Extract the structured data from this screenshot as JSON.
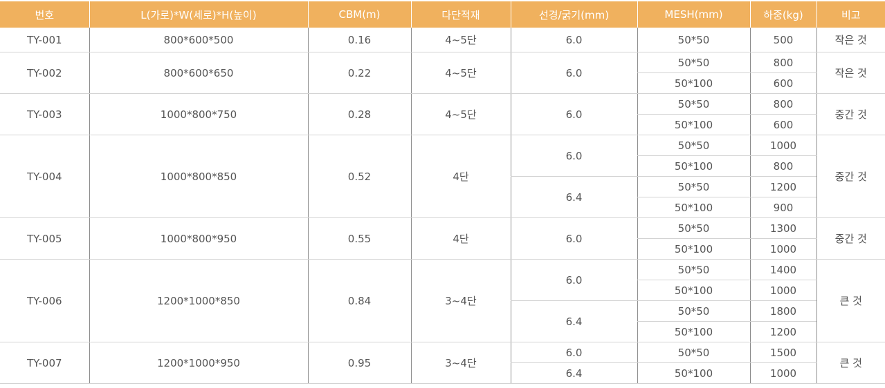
{
  "colors": {
    "header_bg": "#f0b15e",
    "header_text": "#ffffff",
    "body_text": "#555555",
    "row_line": "#d3d3d3",
    "col_line": "#8c8c8c"
  },
  "headers": [
    "번호",
    "L(가로)*W(세로)*H(높이)",
    "CBM(m)",
    "다단적재",
    "선경/굵기(mm)",
    "MESH(mm)",
    "하중(kg)",
    "비고"
  ],
  "products": [
    {
      "no": "TY-001",
      "size": "800*600*500",
      "cbm": "0.16",
      "stack": "4~5단",
      "note": "작은 것",
      "wires": [
        {
          "dia": "6.0",
          "meshes": [
            {
              "mesh": "50*50",
              "load": "500"
            }
          ]
        }
      ]
    },
    {
      "no": "TY-002",
      "size": "800*600*650",
      "cbm": "0.22",
      "stack": "4~5단",
      "note": "작은 것",
      "wires": [
        {
          "dia": "6.0",
          "meshes": [
            {
              "mesh": "50*50",
              "load": "800"
            },
            {
              "mesh": "50*100",
              "load": "600"
            }
          ]
        }
      ]
    },
    {
      "no": "TY-003",
      "size": "1000*800*750",
      "cbm": "0.28",
      "stack": "4~5단",
      "note": "중간 것",
      "wires": [
        {
          "dia": "6.0",
          "meshes": [
            {
              "mesh": "50*50",
              "load": "800"
            },
            {
              "mesh": "50*100",
              "load": "600"
            }
          ]
        }
      ]
    },
    {
      "no": "TY-004",
      "size": "1000*800*850",
      "cbm": "0.52",
      "stack": "4단",
      "note": "중간 것",
      "wires": [
        {
          "dia": "6.0",
          "meshes": [
            {
              "mesh": "50*50",
              "load": "1000"
            },
            {
              "mesh": "50*100",
              "load": "800"
            }
          ]
        },
        {
          "dia": "6.4",
          "meshes": [
            {
              "mesh": "50*50",
              "load": "1200"
            },
            {
              "mesh": "50*100",
              "load": "900"
            }
          ]
        }
      ]
    },
    {
      "no": "TY-005",
      "size": "1000*800*950",
      "cbm": "0.55",
      "stack": "4단",
      "note": "중간 것",
      "wires": [
        {
          "dia": "6.0",
          "meshes": [
            {
              "mesh": "50*50",
              "load": "1300"
            },
            {
              "mesh": "50*100",
              "load": "1000"
            }
          ]
        }
      ]
    },
    {
      "no": "TY-006",
      "size": "1200*1000*850",
      "cbm": "0.84",
      "stack": "3~4단",
      "note": "큰 것",
      "wires": [
        {
          "dia": "6.0",
          "meshes": [
            {
              "mesh": "50*50",
              "load": "1400"
            },
            {
              "mesh": "50*100",
              "load": "1000"
            }
          ]
        },
        {
          "dia": "6.4",
          "meshes": [
            {
              "mesh": "50*50",
              "load": "1800"
            },
            {
              "mesh": "50*100",
              "load": "1200"
            }
          ]
        }
      ]
    },
    {
      "no": "TY-007",
      "size": "1200*1000*950",
      "cbm": "0.95",
      "stack": "3~4단",
      "note": "큰 것",
      "wires": [
        {
          "dia": "6.0",
          "meshes": [
            {
              "mesh": "50*50",
              "load": "1500"
            }
          ]
        },
        {
          "dia": "6.4",
          "meshes": [
            {
              "mesh": "50*100",
              "load": "1000"
            }
          ]
        }
      ]
    }
  ]
}
